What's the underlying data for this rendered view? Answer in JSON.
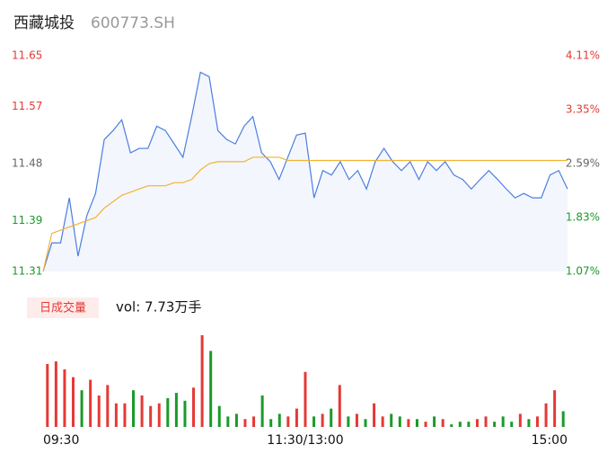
{
  "header": {
    "name": "西藏城投",
    "code": "600773.SH"
  },
  "chart_data": [
    {
      "type": "line",
      "x": [
        0,
        4,
        8,
        12,
        16,
        20,
        24,
        28,
        32,
        36,
        40,
        44,
        48,
        52,
        56,
        60,
        64,
        68,
        72,
        76,
        80,
        84,
        88,
        92,
        96,
        100,
        104,
        108,
        112,
        116,
        120,
        124,
        128,
        132,
        136,
        140,
        144,
        148,
        152,
        156,
        160,
        164,
        168,
        172,
        176,
        180,
        184,
        188,
        192,
        196,
        200,
        204,
        208,
        212,
        216,
        220,
        224,
        228,
        232,
        236,
        240
      ],
      "series": [
        {
          "name": "price",
          "color": "#4a7ee0",
          "values": [
            11.31,
            11.355,
            11.355,
            11.426,
            11.334,
            11.398,
            11.433,
            11.518,
            11.532,
            11.549,
            11.497,
            11.504,
            11.504,
            11.539,
            11.532,
            11.511,
            11.49,
            11.554,
            11.624,
            11.617,
            11.532,
            11.518,
            11.511,
            11.539,
            11.554,
            11.497,
            11.483,
            11.455,
            11.49,
            11.525,
            11.528,
            11.426,
            11.469,
            11.462,
            11.483,
            11.455,
            11.469,
            11.44,
            11.483,
            11.504,
            11.483,
            11.469,
            11.483,
            11.455,
            11.483,
            11.469,
            11.483,
            11.462,
            11.455,
            11.44,
            11.455,
            11.469,
            11.455,
            11.44,
            11.426,
            11.433,
            11.426,
            11.426,
            11.462,
            11.469,
            11.44
          ]
        },
        {
          "name": "average",
          "color": "#f2b233",
          "values": [
            11.31,
            11.37,
            11.375,
            11.38,
            11.385,
            11.39,
            11.395,
            11.41,
            11.42,
            11.43,
            11.435,
            11.44,
            11.445,
            11.445,
            11.445,
            11.45,
            11.45,
            11.455,
            11.47,
            11.48,
            11.483,
            11.483,
            11.483,
            11.483,
            11.49,
            11.49,
            11.49,
            11.49,
            11.485,
            11.485,
            11.485,
            11.485,
            11.485,
            11.485,
            11.485,
            11.485,
            11.485,
            11.485,
            11.485,
            11.485,
            11.485,
            11.485,
            11.485,
            11.485,
            11.485,
            11.485,
            11.485,
            11.485,
            11.485,
            11.485,
            11.485,
            11.485,
            11.485,
            11.485,
            11.485,
            11.485,
            11.485,
            11.485,
            11.485,
            11.485,
            11.485
          ]
        }
      ],
      "area_color": "#f3f6fd",
      "xlim": [
        0,
        240
      ],
      "xticks": [
        {
          "value": 0,
          "label": "09:30"
        },
        {
          "value": 120,
          "label": "11:30/13:00"
        },
        {
          "value": 240,
          "label": "15:00"
        }
      ],
      "ylim": [
        11.31,
        11.65
      ],
      "yticks": [
        11.31,
        11.39,
        11.48,
        11.57,
        11.65
      ],
      "ytick_colors": [
        "#1a9a2a",
        "#1a9a2a",
        "#666666",
        "#e53935",
        "#e53935"
      ],
      "y2lim": [
        1.07,
        4.11
      ],
      "y2ticks": [
        {
          "value": 1.07,
          "label": "1.07%"
        },
        {
          "value": 1.83,
          "label": "1.83%"
        },
        {
          "value": 2.59,
          "label": "2.59%"
        },
        {
          "value": 3.35,
          "label": "3.35%"
        },
        {
          "value": 4.11,
          "label": "4.11%"
        }
      ]
    },
    {
      "type": "bar",
      "legend_label": "日成交量",
      "summary": "vol: 7.73万手",
      "values": [
        2400,
        2500,
        2200,
        1900,
        1400,
        1800,
        1200,
        1600,
        900,
        900,
        1400,
        1200,
        800,
        900,
        1100,
        1300,
        1000,
        1500,
        3500,
        2900,
        800,
        400,
        500,
        300,
        400,
        1200,
        300,
        500,
        400,
        700,
        2100,
        400,
        500,
        700,
        1600,
        400,
        500,
        300,
        900,
        400,
        500,
        400,
        300,
        300,
        200,
        400,
        300,
        100,
        200,
        200,
        300,
        400,
        200,
        400,
        200,
        500,
        300,
        400,
        900,
        1400,
        600
      ],
      "up_color": "#e53935",
      "down_color": "#1a9a2a",
      "ylim": [
        0,
        3600
      ]
    }
  ]
}
